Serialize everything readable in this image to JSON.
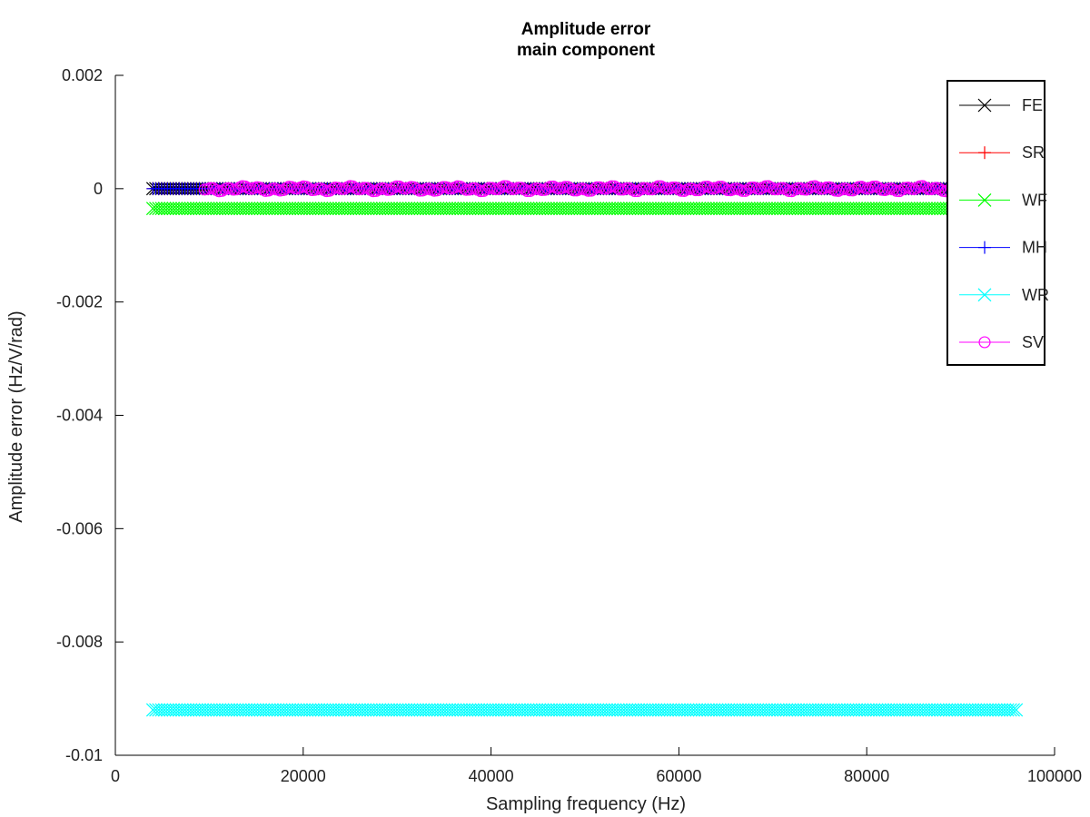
{
  "chart_data": {
    "type": "scatter",
    "title": "Amplitude error",
    "subtitle": "main component",
    "xlabel": "Sampling frequency (Hz)",
    "ylabel": "Amplitude error (Hz/V/rad)",
    "xlim": [
      0,
      100000
    ],
    "ylim": [
      -0.01,
      0.002
    ],
    "x_ticks": [
      0,
      20000,
      40000,
      60000,
      80000,
      100000
    ],
    "x_tick_labels": [
      "0",
      "20000",
      "40000",
      "60000",
      "80000",
      "100000"
    ],
    "y_ticks": [
      0.002,
      0,
      -0.002,
      -0.004,
      -0.006,
      -0.008,
      -0.01
    ],
    "y_tick_labels": [
      "0.002",
      "0",
      "-0.002",
      "-0.004",
      "-0.006",
      "-0.008",
      "-0.01"
    ],
    "grid": false,
    "legend_position": "top-right",
    "series": [
      {
        "name": "FE",
        "color": "#000000",
        "marker": "x",
        "x_range": [
          4000,
          96000
        ],
        "y": 0.0
      },
      {
        "name": "SR",
        "color": "#ff0000",
        "marker": "+",
        "x_range": [
          4000,
          96000
        ],
        "y": 0.0
      },
      {
        "name": "WF",
        "color": "#00ff00",
        "marker": "x",
        "x_range": [
          4000,
          96000
        ],
        "y": -0.00035
      },
      {
        "name": "MH",
        "color": "#0000ff",
        "marker": "+",
        "x_range": [
          4000,
          96000
        ],
        "y": 0.0
      },
      {
        "name": "WR",
        "color": "#00ffff",
        "marker": "x",
        "x_range": [
          4000,
          96000
        ],
        "y": -0.0092
      },
      {
        "name": "SV",
        "color": "#ff00ff",
        "marker": "o",
        "x_range": [
          9500,
          96000
        ],
        "y": 0.0
      }
    ]
  }
}
